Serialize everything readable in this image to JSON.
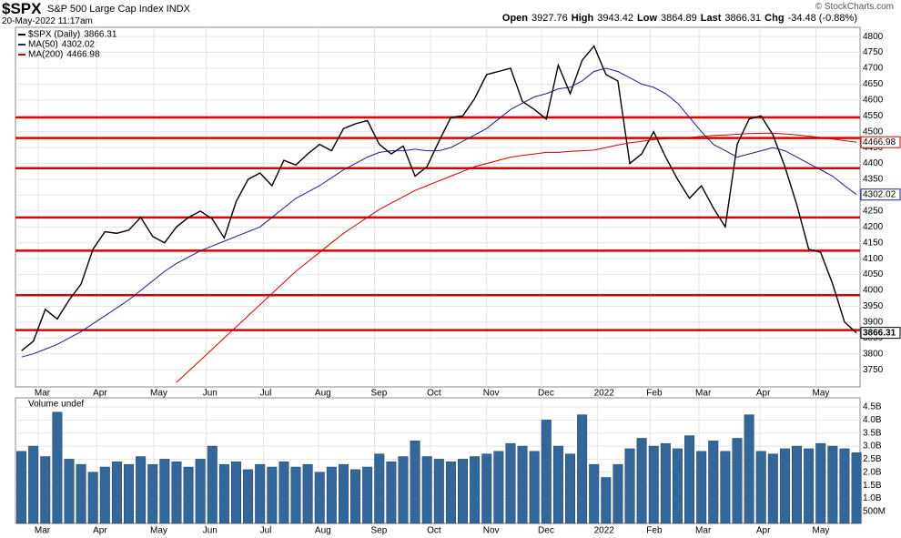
{
  "chart_data": [
    {
      "type": "line",
      "title": "$SPX",
      "subtitle": "S&P 500 Large Cap Index INDX",
      "date": "20-May-2022 11:17am",
      "watermark": "© StockCharts.com",
      "quote": [
        {
          "label": "Open",
          "value": 3927.76
        },
        {
          "label": "High",
          "value": 3943.42
        },
        {
          "label": "Low",
          "value": 3864.89
        },
        {
          "label": "Last",
          "value": 3866.31
        },
        {
          "label": "Chg",
          "value": -34.48,
          "value_label": "-34.48 (-0.88%)"
        }
      ],
      "x": [
        0,
        1,
        2,
        3,
        4,
        5,
        6,
        7,
        8,
        9,
        10,
        11,
        12,
        13,
        14,
        15,
        16,
        17,
        18,
        19,
        20,
        21,
        22,
        23,
        24,
        25,
        26,
        27,
        28,
        29,
        30,
        31,
        32,
        33,
        34,
        35,
        36,
        37,
        38,
        39,
        40,
        41,
        42,
        43,
        44,
        45,
        46,
        47,
        48,
        49,
        50,
        51,
        52,
        53,
        54,
        55,
        56,
        57,
        58,
        59,
        60,
        61,
        62,
        63,
        64,
        65,
        66,
        67,
        68,
        69,
        70
      ],
      "xlim": [
        -0.5,
        70.3
      ],
      "xticks": [
        {
          "value": 1.4,
          "label": "Mar"
        },
        {
          "value": 6.3,
          "label": "Apr"
        },
        {
          "value": 11.1,
          "label": "May"
        },
        {
          "value": 15.5,
          "label": "Jun"
        },
        {
          "value": 20.3,
          "label": "Jul"
        },
        {
          "value": 24.9,
          "label": "Aug"
        },
        {
          "value": 29.6,
          "label": "Sep"
        },
        {
          "value": 34.3,
          "label": "Oct"
        },
        {
          "value": 39.0,
          "label": "Nov"
        },
        {
          "value": 43.6,
          "label": "Dec"
        },
        {
          "value": 48.3,
          "label": "2022"
        },
        {
          "value": 52.7,
          "label": "Feb"
        },
        {
          "value": 56.8,
          "label": "Mar"
        },
        {
          "value": 61.9,
          "label": "Apr"
        },
        {
          "value": 66.6,
          "label": "May"
        }
      ],
      "ylim": [
        3696,
        4829
      ],
      "yticks": [
        3750,
        3800,
        3850,
        3900,
        3950,
        4000,
        4050,
        4100,
        4150,
        4200,
        4250,
        4300,
        4350,
        4400,
        4450,
        4500,
        4550,
        4600,
        4650,
        4700,
        4750,
        4800
      ],
      "levels": [
        4545,
        4480,
        4385,
        4230,
        4125,
        3985,
        3875
      ],
      "level_color": "#dd0000",
      "series": [
        {
          "name": "$SPX (Daily)",
          "color": "#000000",
          "values": [
            3810,
            3840,
            3940,
            3910,
            3970,
            4020,
            4130,
            4185,
            4180,
            4190,
            4230,
            4170,
            4150,
            4200,
            4230,
            4250,
            4225,
            4165,
            4280,
            4350,
            4370,
            4330,
            4410,
            4395,
            4430,
            4460,
            4440,
            4510,
            4525,
            4535,
            4460,
            4430,
            4455,
            4360,
            4390,
            4470,
            4545,
            4550,
            4605,
            4680,
            4690,
            4700,
            4595,
            4570,
            4540,
            4710,
            4620,
            4725,
            4770,
            4680,
            4660,
            4400,
            4430,
            4500,
            4420,
            4350,
            4290,
            4330,
            4260,
            4200,
            4460,
            4540,
            4550,
            4490,
            4390,
            4270,
            4130,
            4120,
            4020,
            3900,
            3866.31
          ]
        },
        {
          "name": "MA(50)",
          "color": "#1a237e",
          "values": [
            3790,
            3800,
            3815,
            3830,
            3850,
            3870,
            3895,
            3920,
            3945,
            3970,
            4000,
            4030,
            4060,
            4085,
            4105,
            4125,
            4140,
            4155,
            4170,
            4185,
            4200,
            4230,
            4260,
            4290,
            4310,
            4330,
            4355,
            4380,
            4400,
            4420,
            4435,
            4440,
            4440,
            4445,
            4440,
            4440,
            4450,
            4470,
            4490,
            4510,
            4540,
            4570,
            4590,
            4610,
            4620,
            4635,
            4640,
            4660,
            4690,
            4700,
            4690,
            4670,
            4650,
            4640,
            4620,
            4590,
            4545,
            4500,
            4460,
            4440,
            4420,
            4430,
            4440,
            4450,
            4440,
            4420,
            4400,
            4380,
            4360,
            4330,
            4302.02
          ]
        },
        {
          "name": "MA(200)",
          "color": "#cc0000",
          "values": [
            null,
            null,
            null,
            null,
            null,
            null,
            null,
            null,
            null,
            null,
            null,
            null,
            null,
            3710,
            3745,
            3780,
            3815,
            3850,
            3885,
            3920,
            3955,
            3990,
            4025,
            4060,
            4090,
            4120,
            4150,
            4180,
            4205,
            4230,
            4255,
            4275,
            4295,
            4315,
            4330,
            4345,
            4360,
            4375,
            4390,
            4400,
            4410,
            4420,
            4425,
            4430,
            4435,
            4435,
            4438,
            4440,
            4442,
            4450,
            4458,
            4465,
            4470,
            4475,
            4478,
            4480,
            4482,
            4485,
            4488,
            4490,
            4492,
            4494,
            4495,
            4495,
            4493,
            4490,
            4486,
            4482,
            4477,
            4472,
            4466.98
          ]
        }
      ]
    },
    {
      "type": "bar",
      "title": "Volume undef",
      "color": "#336699",
      "ylim": [
        40000000,
        4850000000
      ],
      "yticks": [
        {
          "value": 500000000,
          "label": "500M"
        },
        {
          "value": 1000000000,
          "label": "1.0B"
        },
        {
          "value": 1500000000,
          "label": "1.5B"
        },
        {
          "value": 2000000000,
          "label": "2.0B"
        },
        {
          "value": 2500000000,
          "label": "2.5B"
        },
        {
          "value": 3000000000,
          "label": "3.0B"
        },
        {
          "value": 3500000000,
          "label": "3.5B"
        },
        {
          "value": 4000000000,
          "label": "4.0B"
        },
        {
          "value": 4500000000,
          "label": "4.5B"
        }
      ],
      "values": [
        2800000000,
        3000000000,
        2600000000,
        4300000000,
        2500000000,
        2300000000,
        2000000000,
        2200000000,
        2400000000,
        2300000000,
        2600000000,
        2300000000,
        2500000000,
        2400000000,
        2200000000,
        2500000000,
        3000000000,
        2300000000,
        2400000000,
        2100000000,
        2300000000,
        2200000000,
        2400000000,
        2200000000,
        2300000000,
        2000000000,
        2200000000,
        2300000000,
        2100000000,
        2200000000,
        2700000000,
        2400000000,
        2600000000,
        3200000000,
        2600000000,
        2500000000,
        2400000000,
        2500000000,
        2600000000,
        2700000000,
        2800000000,
        3100000000,
        3000000000,
        2800000000,
        4000000000,
        3000000000,
        2700000000,
        4200000000,
        2300000000,
        1800000000,
        2300000000,
        2900000000,
        3300000000,
        3000000000,
        3100000000,
        2900000000,
        3400000000,
        2800000000,
        3200000000,
        2800000000,
        3300000000,
        4200000000,
        2800000000,
        2700000000,
        2900000000,
        3000000000,
        2900000000,
        3100000000,
        3000000000,
        2900000000,
        2746138000
      ]
    }
  ]
}
